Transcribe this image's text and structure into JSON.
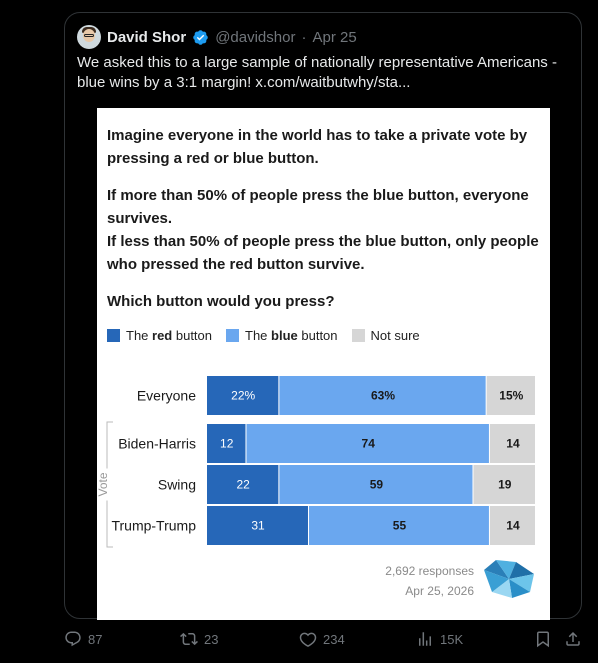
{
  "quote": {
    "author": "David Shor",
    "handle": "@davidshor",
    "separator": "·",
    "date": "Apr 25",
    "text": "We asked this to a large sample of nationally representative Americans - blue wins by a 3:1 margin!  x.com/waitbutwhy/sta..."
  },
  "chart_data": {
    "type": "bar",
    "orientation": "horizontal-stacked",
    "question_lines": [
      "Imagine everyone in the world has to take a private vote by pressing a red or blue button.",
      "If more than 50% of people press the blue button, everyone survives.",
      "If less than 50% of people press the blue button, only people who pressed the red button survive.",
      "Which button would you press?"
    ],
    "legend": [
      {
        "prefix": "The ",
        "bold": "red",
        "suffix": " button"
      },
      {
        "prefix": "The ",
        "bold": "blue",
        "suffix": " button"
      },
      {
        "prefix": "",
        "bold": "",
        "suffix": "Not sure"
      }
    ],
    "group_label": "Vote",
    "categories": [
      "Everyone",
      "Biden-Harris",
      "Swing",
      "Trump-Trump"
    ],
    "series": [
      {
        "values": [
          22,
          12,
          22,
          31
        ],
        "labels": [
          "22%",
          "12",
          "22",
          "31"
        ]
      },
      {
        "values": [
          63,
          74,
          59,
          55
        ],
        "labels": [
          "63%",
          "74",
          "59",
          "55"
        ]
      },
      {
        "values": [
          15,
          14,
          19,
          14
        ],
        "labels": [
          "15%",
          "14",
          "19",
          "14"
        ]
      }
    ],
    "colors": [
      "#2667b8",
      "#6aa7ef",
      "#d6d6d6"
    ],
    "responses": "2,692 responses",
    "date": "Apr 25, 2026"
  },
  "actions": {
    "replies": "87",
    "reposts": "23",
    "likes": "234",
    "views": "15K"
  }
}
